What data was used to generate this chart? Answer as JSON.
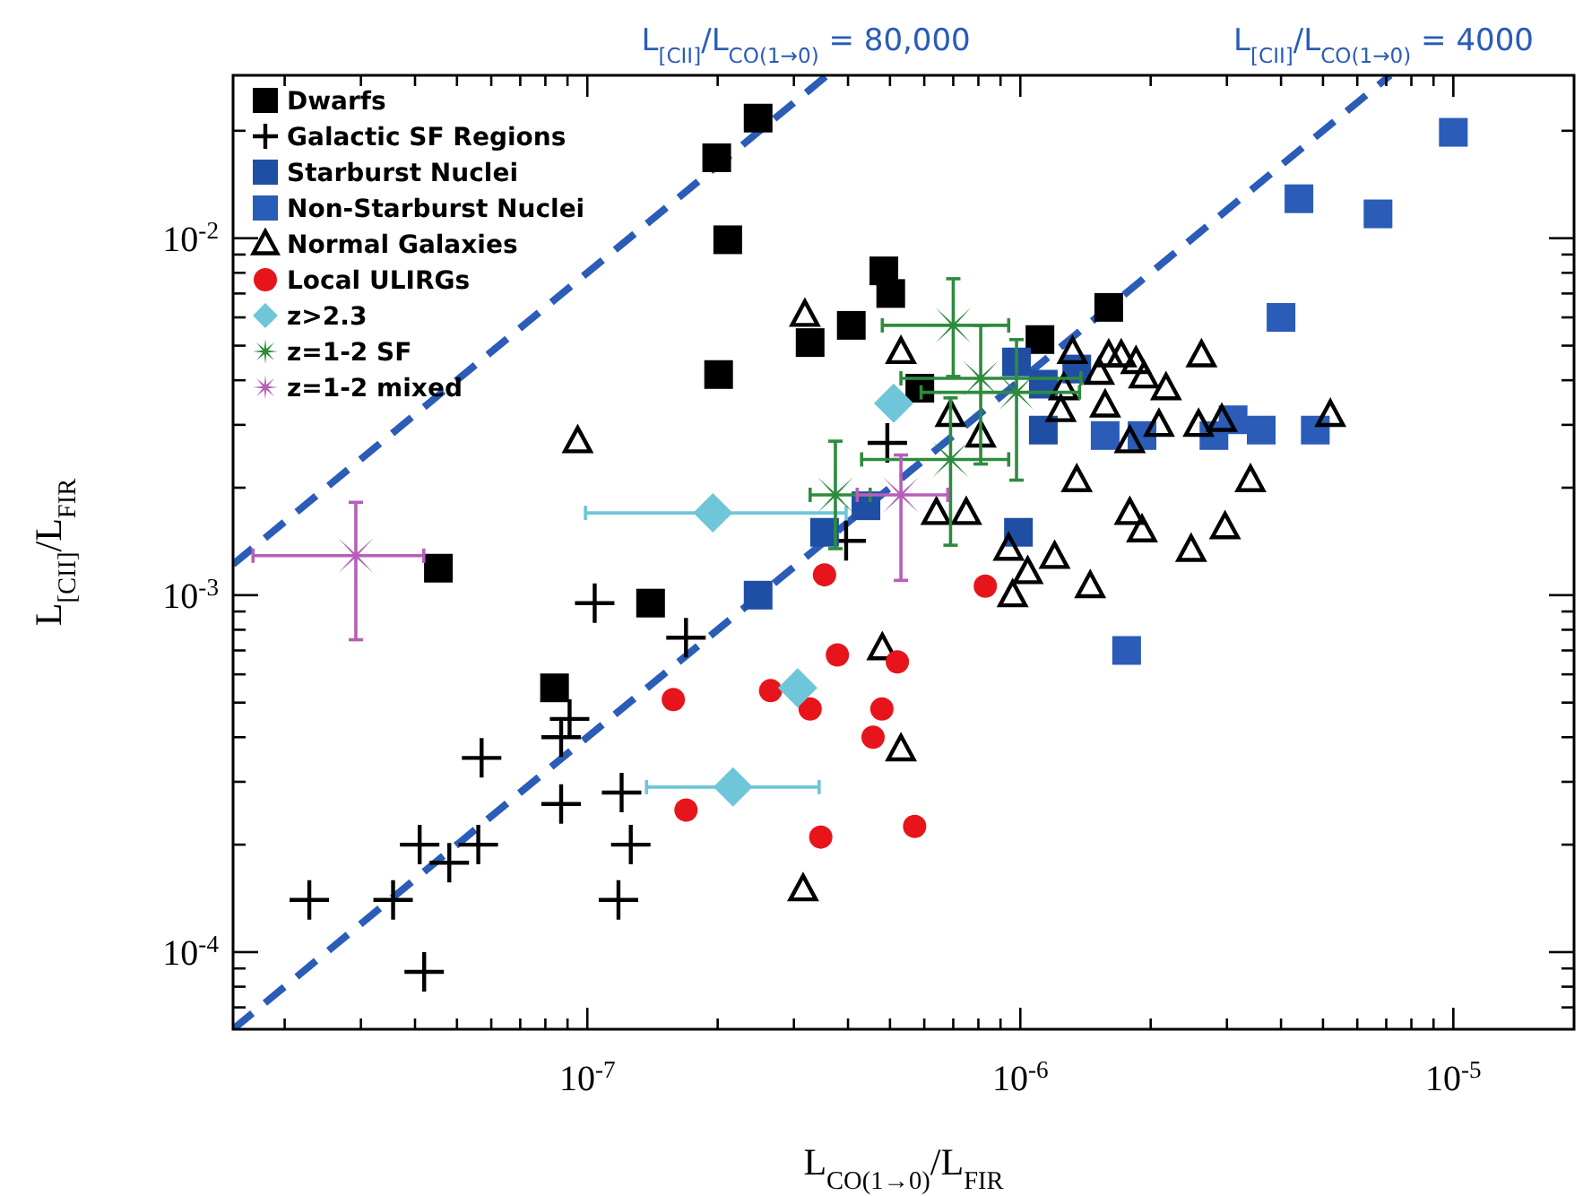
{
  "chart_data": {
    "type": "scatter",
    "xlabel": "L$_{CO(1→0)}$/L$_{FIR}$",
    "ylabel": "L$_{[CII]}$/L$_{FIR}$",
    "log": "xy",
    "legend": "top left",
    "xlim": [
      1.52e-08,
      1.9e-05
    ],
    "ylim": [
      6.08e-05,
      0.0286
    ],
    "xticks": [
      {
        "value": 2e-08,
        "label": null
      },
      {
        "value": 3e-08,
        "label": null
      },
      {
        "value": 4e-08,
        "label": null
      },
      {
        "value": 5e-08,
        "label": null
      },
      {
        "value": 6e-08,
        "label": null
      },
      {
        "value": 7e-08,
        "label": null
      },
      {
        "value": 8e-08,
        "label": null
      },
      {
        "value": 9e-08,
        "label": null
      },
      {
        "value": 1e-07,
        "label": "10$^{-7}$"
      },
      {
        "value": 2e-07,
        "label": null
      },
      {
        "value": 3e-07,
        "label": null
      },
      {
        "value": 4e-07,
        "label": null
      },
      {
        "value": 5e-07,
        "label": null
      },
      {
        "value": 6e-07,
        "label": null
      },
      {
        "value": 7e-07,
        "label": null
      },
      {
        "value": 8e-07,
        "label": null
      },
      {
        "value": 9e-07,
        "label": null
      },
      {
        "value": 1e-06,
        "label": "10$^{-6}$"
      },
      {
        "value": 2e-06,
        "label": null
      },
      {
        "value": 3e-06,
        "label": null
      },
      {
        "value": 4e-06,
        "label": null
      },
      {
        "value": 5e-06,
        "label": null
      },
      {
        "value": 6e-06,
        "label": null
      },
      {
        "value": 7e-06,
        "label": null
      },
      {
        "value": 8e-06,
        "label": null
      },
      {
        "value": 9e-06,
        "label": null
      },
      {
        "value": 1e-05,
        "label": "10$^{-5}$"
      }
    ],
    "yticks": [
      {
        "value": 7e-05,
        "label": null
      },
      {
        "value": 8e-05,
        "label": null
      },
      {
        "value": 9e-05,
        "label": null
      },
      {
        "value": 0.0001,
        "label": "10$^{-4}$"
      },
      {
        "value": 0.0002,
        "label": null
      },
      {
        "value": 0.0003,
        "label": null
      },
      {
        "value": 0.0004,
        "label": null
      },
      {
        "value": 0.0005,
        "label": null
      },
      {
        "value": 0.0006,
        "label": null
      },
      {
        "value": 0.0007,
        "label": null
      },
      {
        "value": 0.0008,
        "label": null
      },
      {
        "value": 0.0009,
        "label": null
      },
      {
        "value": 0.001,
        "label": "10$^{-3}$"
      },
      {
        "value": 0.002,
        "label": null
      },
      {
        "value": 0.003,
        "label": null
      },
      {
        "value": 0.004,
        "label": null
      },
      {
        "value": 0.005,
        "label": null
      },
      {
        "value": 0.006,
        "label": null
      },
      {
        "value": 0.007,
        "label": null
      },
      {
        "value": 0.008,
        "label": null
      },
      {
        "value": 0.009,
        "label": null
      },
      {
        "value": 0.01,
        "label": "10$^{-2}$"
      },
      {
        "value": 0.02,
        "label": null
      }
    ],
    "series": [
      {
        "type": "line",
        "name": "L$_{[CII]}$/L$_{CO(1→0)}$ = 80,000",
        "color": "#2a5cb8",
        "line_style": "dashed",
        "marker": "none",
        "x": [
          1.52e-08,
          3.58e-07
        ],
        "values": [
          0.00122,
          0.0286
        ]
      },
      {
        "type": "line",
        "name": "L$_{[CII]}$/L$_{CO(1→0)}$ = 4000",
        "color": "#2a5cb8",
        "line_style": "dashed",
        "marker": "none",
        "x": [
          1.52e-08,
          7.15e-06
        ],
        "values": [
          6.08e-05,
          0.0286
        ]
      },
      {
        "name": "Dwarfs",
        "color": "#000000",
        "marker": "square",
        "x": [
          2.48e-07,
          1.99e-07,
          2.11e-07,
          2.01e-07,
          4.84e-07,
          5.02e-07,
          4.07e-07,
          3.27e-07,
          5.86e-07,
          1.11e-06,
          1.6e-06,
          4.53e-08,
          1.4e-07,
          8.4e-08
        ],
        "values": [
          0.0217,
          0.0168,
          0.0099,
          0.00415,
          0.0081,
          0.007,
          0.0057,
          0.0051,
          0.0038,
          0.0052,
          0.0064,
          0.00119,
          0.00095,
          0.00055
        ]
      },
      {
        "name": "Galactic SF Regions",
        "color": "#000000",
        "marker": "cross",
        "x": [
          1.04e-07,
          1.69e-07,
          9.1e-08,
          8.7e-08,
          5.7e-08,
          8.7e-08,
          1.2e-07,
          4.1e-08,
          4.8e-08,
          5.6e-08,
          2.28e-08,
          3.56e-08,
          1.26e-07,
          1.18e-07,
          4.2e-08,
          4.93e-07,
          3.96e-07
        ],
        "values": [
          0.00095,
          0.00076,
          0.00045,
          0.0004,
          0.00035,
          0.00026,
          0.00028,
          0.0002,
          0.000178,
          0.0002,
          0.00014,
          0.00014,
          0.0002,
          0.00014,
          8.8e-05,
          0.00267,
          0.00142
        ]
      },
      {
        "name": "Starburst Nuclei",
        "color": "#1f4fa5",
        "marker": "square",
        "x": [
          9.8e-07,
          1.35e-06,
          1.13e-06,
          1.13e-06,
          9.9e-07,
          4.4e-07,
          3.53e-07,
          2.48e-07
        ],
        "values": [
          0.0045,
          0.0043,
          0.0039,
          0.0029,
          0.0015,
          0.00178,
          0.0015,
          0.001
        ]
      },
      {
        "name": "Non-Starburst Nuclei",
        "color": "#2a5cb8",
        "marker": "square",
        "x": [
          1e-05,
          4.4e-06,
          6.7e-06,
          4e-06,
          1.57e-06,
          1.91e-06,
          2.8e-06,
          3.1e-06,
          3.6e-06,
          4.8e-06,
          1.76e-06
        ],
        "values": [
          0.0198,
          0.0129,
          0.0117,
          0.006,
          0.0028,
          0.0028,
          0.0028,
          0.0031,
          0.0029,
          0.0029,
          0.0007
        ]
      },
      {
        "name": "Normal Galaxies",
        "color": "#000000",
        "marker": "triangle",
        "x": [
          1.32e-06,
          1.52e-06,
          1.6e-06,
          1.71e-06,
          1.85e-06,
          1.93e-06,
          1.26e-06,
          1.24e-06,
          2.17e-06,
          2.62e-06,
          1.57e-06,
          2.09e-06,
          1.79e-06,
          2.58e-06,
          2.92e-06,
          5.2e-06,
          1.35e-06,
          3.4e-06,
          1.79e-06,
          1.91e-06,
          2.97e-06,
          2.48e-06,
          1.2e-06,
          9.4e-07,
          1.04e-06,
          1.45e-06,
          9.6e-07,
          3.18e-07,
          5.3e-07,
          6.9e-07,
          8.1e-07,
          6.4e-07,
          7.5e-07,
          9.5e-08,
          4.8e-07,
          5.3e-07,
          3.15e-07
        ],
        "values": [
          0.0048,
          0.0042,
          0.0047,
          0.0047,
          0.0045,
          0.0041,
          0.0038,
          0.0033,
          0.0038,
          0.0047,
          0.0034,
          0.003,
          0.0027,
          0.003,
          0.0031,
          0.0032,
          0.0021,
          0.0021,
          0.0017,
          0.00152,
          0.00155,
          0.00134,
          0.00128,
          0.00135,
          0.00116,
          0.00106,
          0.001,
          0.0061,
          0.0048,
          0.0032,
          0.0028,
          0.0017,
          0.0017,
          0.0027,
          0.00071,
          0.00037,
          0.00015
        ]
      },
      {
        "name": "Local ULIRGs",
        "color": "#e8141c",
        "marker": "circle",
        "x": [
          3.53e-07,
          8.3e-07,
          3.78e-07,
          5.2e-07,
          2.65e-07,
          3.27e-07,
          4.79e-07,
          4.57e-07,
          5.7e-07,
          3.46e-07,
          1.69e-07,
          1.58e-07
        ],
        "values": [
          0.00114,
          0.00106,
          0.00068,
          0.00065,
          0.00054,
          0.00048,
          0.00048,
          0.0004,
          0.000225,
          0.00021,
          0.00025,
          0.00051
        ]
      },
      {
        "name": "z>2.3",
        "color": "#6ec6d8",
        "marker": "diamond",
        "x": [
          1.95e-07,
          5.1e-07,
          3.06e-07,
          2.17e-07
        ],
        "values": [
          0.0017,
          0.00345,
          0.00055,
          0.00029
        ],
        "xerrors": [
          [
            9.9e-08,
            3.96e-07
          ],
          null,
          null,
          [
            1.37e-07,
            3.43e-07
          ]
        ]
      },
      {
        "name": "z=1-2 SF",
        "color": "#2e8b3e",
        "marker": "star",
        "x": [
          7e-07,
          8.1e-07,
          9.8e-07,
          6.9e-07,
          3.74e-07
        ],
        "values": [
          0.0057,
          0.00405,
          0.0037,
          0.0024,
          0.00191
        ],
        "xerrors": [
          [
            4.8e-07,
            9.4e-07
          ],
          [
            5.3e-07,
            1.38e-06
          ],
          [
            5.9e-07,
            1.37e-06
          ],
          [
            4.3e-07,
            9.4e-07
          ],
          [
            3.27e-07,
            4.5e-07
          ]
        ],
        "errors": [
          [
            0.0041,
            0.0077
          ],
          [
            0.00233,
            0.0057
          ],
          [
            0.0021,
            0.0052
          ],
          [
            0.00138,
            0.00357
          ],
          [
            0.00135,
            0.0027
          ]
        ]
      },
      {
        "name": "z=1-2 mixed",
        "color": "#b65fb8",
        "marker": "star",
        "x": [
          2.92e-08,
          5.3e-07
        ],
        "values": [
          0.00129,
          0.00191
        ],
        "xerrors": [
          [
            1.69e-08,
            4.19e-08
          ],
          [
            4.2e-07,
            6.8e-07
          ]
        ],
        "errors": [
          [
            0.00075,
            0.00182
          ],
          [
            0.0011,
            0.00247
          ]
        ]
      }
    ]
  }
}
